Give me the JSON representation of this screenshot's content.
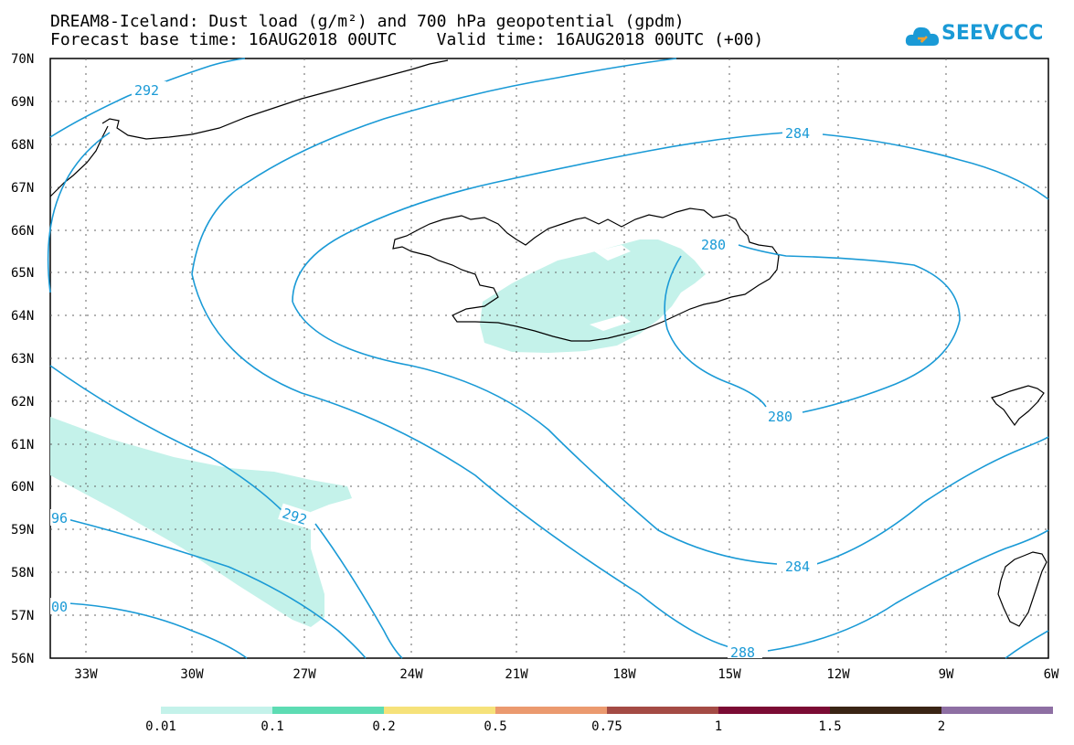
{
  "title_line1": "DREAM8-Iceland: Dust load (g/m²) and 700 hPa geopotential (gpdm)",
  "title_line2": "Forecast base time: 16AUG2018 00UTC    Valid time: 16AUG2018 00UTC (+00)",
  "logo_text": "SEEVCCC",
  "logo_icon": "cloud-logo-icon",
  "lat_labels": [
    "70N",
    "69N",
    "68N",
    "67N",
    "66N",
    "65N",
    "64N",
    "63N",
    "62N",
    "61N",
    "60N",
    "59N",
    "58N",
    "57N",
    "56N"
  ],
  "lon_labels": [
    "33W",
    "30W",
    "27W",
    "24W",
    "21W",
    "18W",
    "15W",
    "12W",
    "9W",
    "6W"
  ],
  "contour_labels": [
    "292",
    "284",
    "280",
    "280",
    "292",
    "96",
    "00",
    "284",
    "288"
  ],
  "colorbar": {
    "colors": [
      "#c4f2ea",
      "#5ddcb3",
      "#f6e27a",
      "#eb9a6f",
      "#a44b45",
      "#7b0b34",
      "#3a2414",
      "#8e6fa3"
    ],
    "labels": [
      "0.01",
      "0.1",
      "0.2",
      "0.5",
      "0.75",
      "1",
      "1.5",
      "2"
    ]
  },
  "colors": {
    "contour": "#1a9ad6",
    "dust_light": "#c4f2ea",
    "coast": "#000000"
  }
}
